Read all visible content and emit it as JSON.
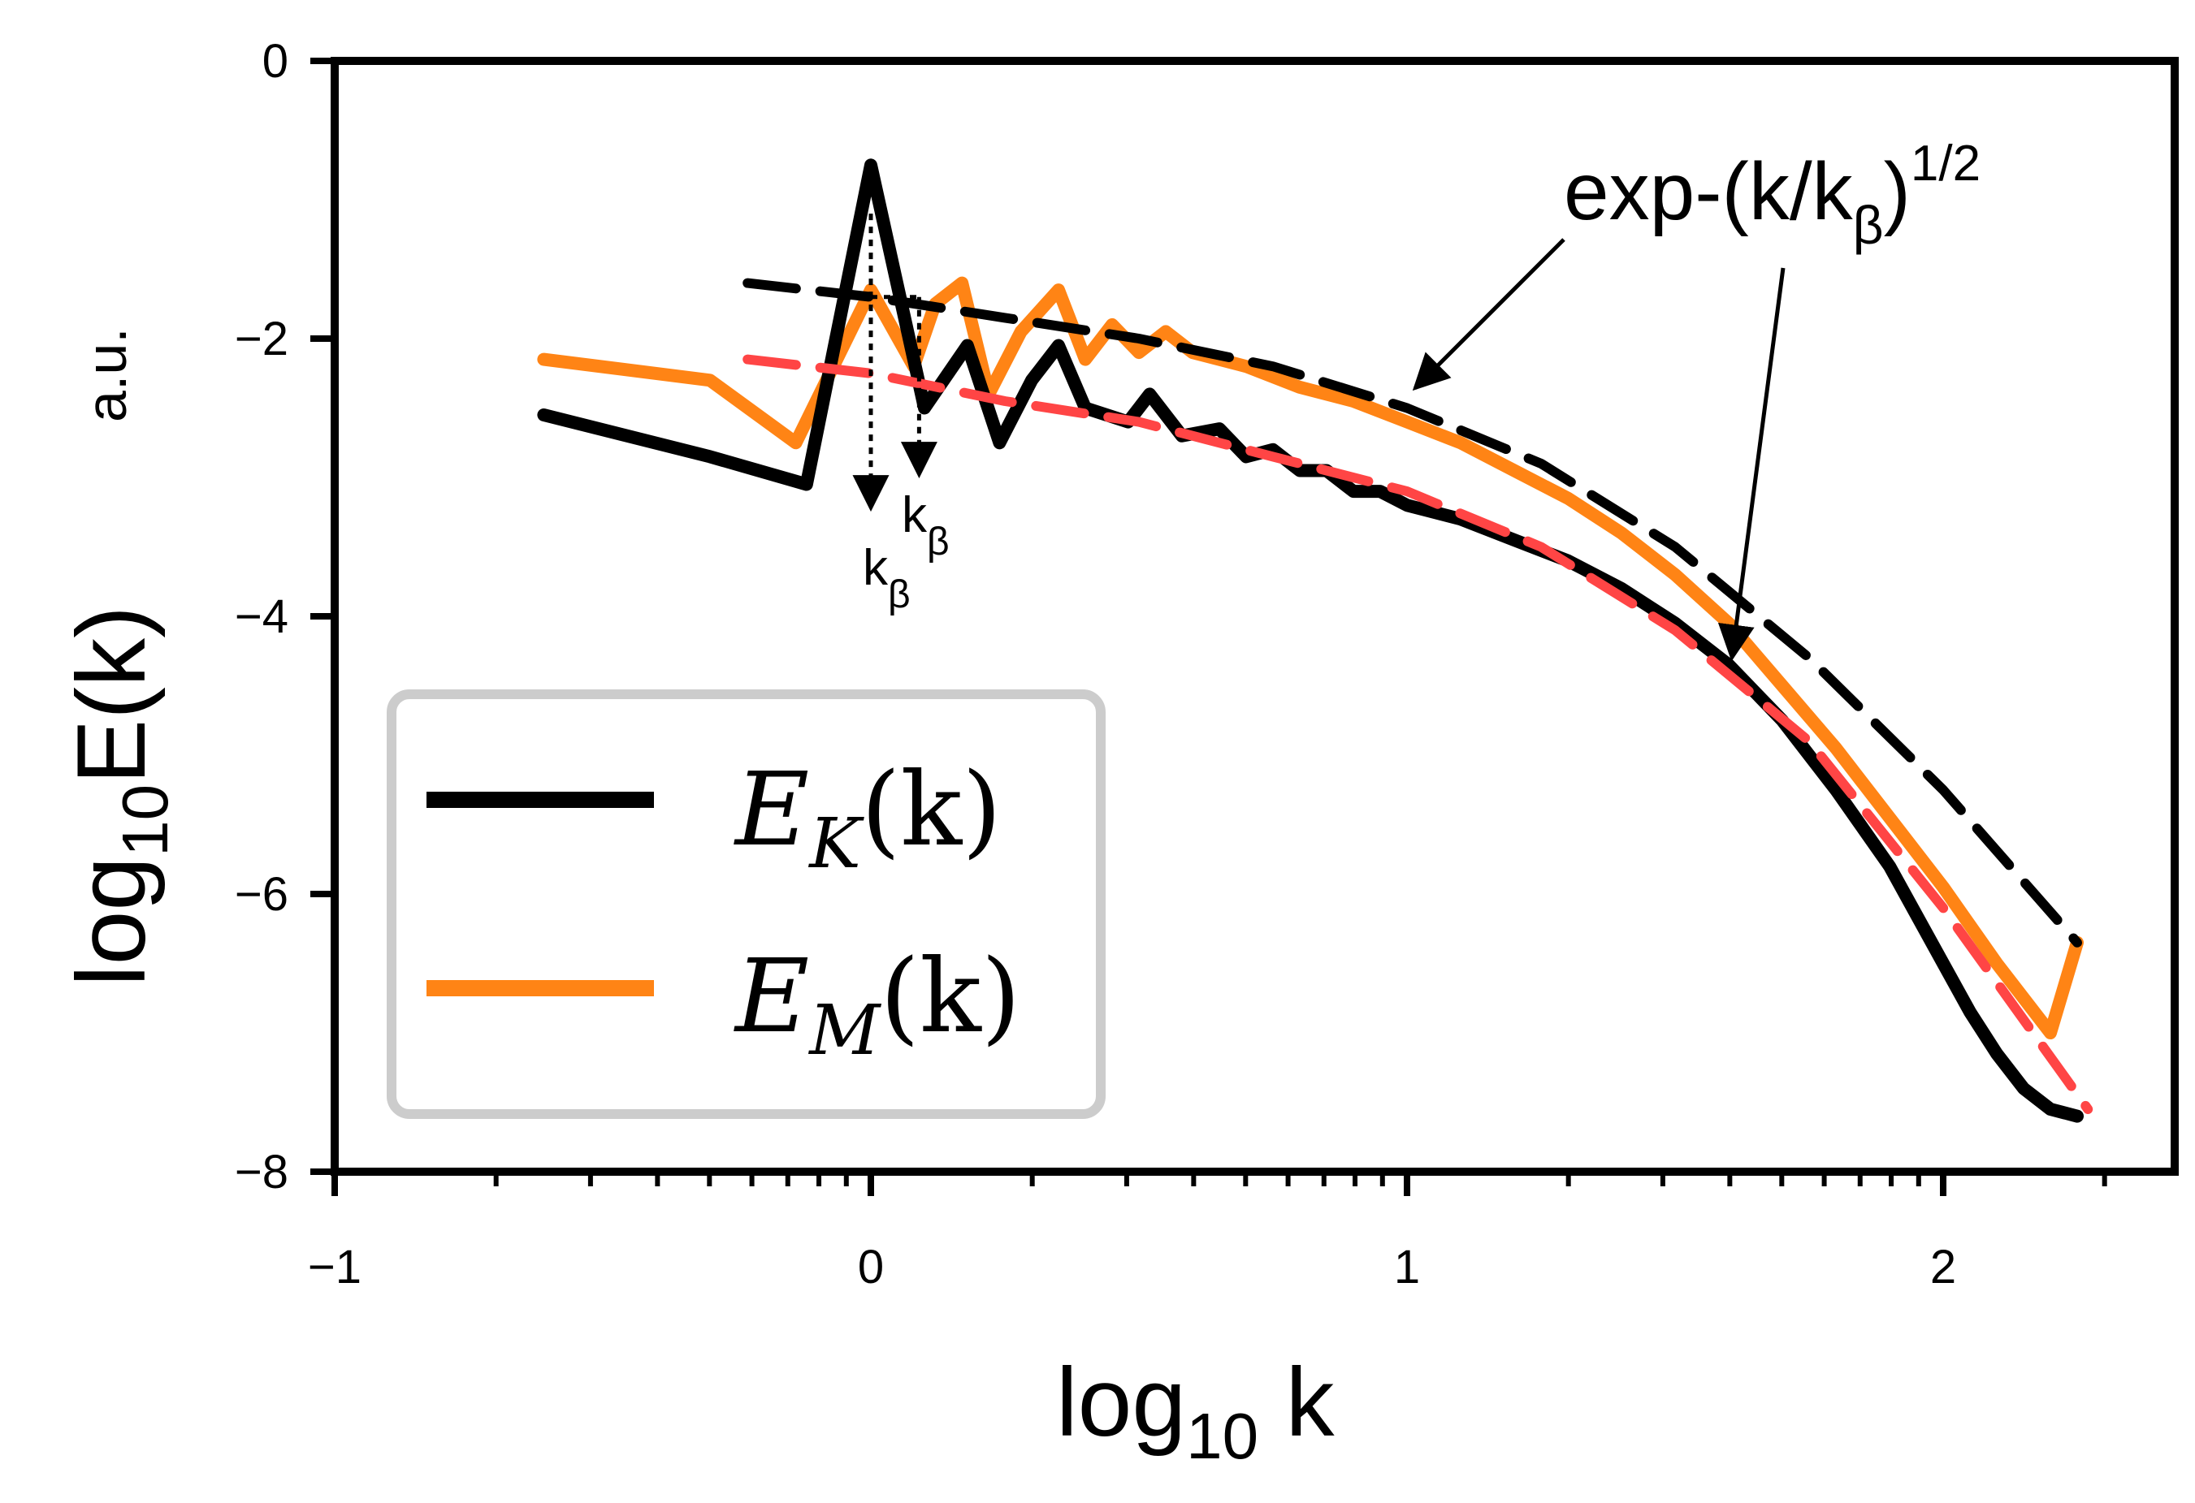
{
  "chart_data": {
    "type": "line",
    "title": "",
    "xlabel": "log",
    "xlabel_sub": "10",
    "xlabel_tail": " k",
    "ylabel": "log",
    "ylabel_sub": "10",
    "ylabel_tail": "E(k)",
    "ylabel_units": "a.u.",
    "xlim": [
      -1,
      2.45
    ],
    "ylim": [
      -8,
      0
    ],
    "xticks": [
      -1,
      0,
      1,
      2
    ],
    "xtick_labels": [
      "−1",
      "0",
      "1",
      "2"
    ],
    "yticks": [
      0,
      -2,
      -4,
      -6,
      -8
    ],
    "ytick_labels": [
      "0",
      "−2",
      "−4",
      "−6",
      "−8"
    ],
    "legend": {
      "placement": "lower-left",
      "entries": [
        {
          "label": "E",
          "sub": "K",
          "tail": "(k)",
          "color": "#000000"
        },
        {
          "label": "E",
          "sub": "M",
          "tail": "(k)",
          "color": "#ff8415"
        }
      ]
    },
    "series": [
      {
        "name": "E_K(k)",
        "color": "#000000",
        "style": "solid",
        "x": [
          -0.61,
          -0.3,
          -0.12,
          0.0,
          0.1,
          0.18,
          0.24,
          0.3,
          0.35,
          0.4,
          0.48,
          0.52,
          0.58,
          0.65,
          0.7,
          0.75,
          0.8,
          0.85,
          0.9,
          0.95,
          1.0,
          1.1,
          1.2,
          1.3,
          1.4,
          1.5,
          1.6,
          1.7,
          1.8,
          1.9,
          2.0,
          2.05,
          2.1,
          2.15,
          2.2,
          2.25
        ],
        "y": [
          -2.55,
          -2.85,
          -3.05,
          -0.75,
          -2.5,
          -2.05,
          -2.75,
          -2.3,
          -2.05,
          -2.5,
          -2.6,
          -2.4,
          -2.7,
          -2.65,
          -2.85,
          -2.8,
          -2.95,
          -2.95,
          -3.1,
          -3.1,
          -3.2,
          -3.3,
          -3.45,
          -3.6,
          -3.8,
          -4.05,
          -4.35,
          -4.75,
          -5.25,
          -5.8,
          -6.5,
          -6.85,
          -7.15,
          -7.4,
          -7.55,
          -7.6
        ]
      },
      {
        "name": "E_M(k)",
        "color": "#ff8415",
        "style": "solid",
        "x": [
          -0.61,
          -0.3,
          -0.14,
          0.0,
          0.08,
          0.12,
          0.17,
          0.22,
          0.28,
          0.35,
          0.4,
          0.45,
          0.5,
          0.55,
          0.6,
          0.7,
          0.8,
          0.9,
          1.0,
          1.1,
          1.2,
          1.3,
          1.4,
          1.5,
          1.6,
          1.7,
          1.8,
          1.9,
          2.0,
          2.1,
          2.2,
          2.25
        ],
        "y": [
          -2.15,
          -2.3,
          -2.75,
          -1.65,
          -2.2,
          -1.75,
          -1.6,
          -2.4,
          -1.95,
          -1.65,
          -2.15,
          -1.9,
          -2.1,
          -1.95,
          -2.1,
          -2.2,
          -2.35,
          -2.45,
          -2.6,
          -2.75,
          -2.95,
          -3.15,
          -3.4,
          -3.7,
          -4.05,
          -4.5,
          -4.95,
          -5.45,
          -5.95,
          -6.5,
          -7.0,
          -6.35
        ]
      },
      {
        "name": "fit_E_M",
        "color": "#000000",
        "style": "dashed",
        "x": [
          -0.23,
          0.0,
          0.25,
          0.5,
          0.75,
          1.0,
          1.25,
          1.5,
          1.75,
          2.0,
          2.25
        ],
        "y": [
          -1.6,
          -1.7,
          -1.85,
          -2.0,
          -2.2,
          -2.5,
          -2.9,
          -3.5,
          -4.3,
          -5.25,
          -6.35
        ]
      },
      {
        "name": "fit_E_K",
        "color": "#ff4545",
        "style": "dashed",
        "x": [
          -0.23,
          0.0,
          0.25,
          0.5,
          0.75,
          1.0,
          1.25,
          1.5,
          1.75,
          2.0,
          2.27
        ],
        "y": [
          -2.15,
          -2.25,
          -2.45,
          -2.6,
          -2.85,
          -3.1,
          -3.5,
          -4.1,
          -4.9,
          -6.1,
          -7.55
        ]
      }
    ],
    "annotations": [
      {
        "text": "exp-(k/k",
        "sub": "β",
        "tail": ")",
        "sup": "1/2"
      },
      {
        "text": "k",
        "sub": "β"
      },
      {
        "text": "k",
        "sub": "β"
      }
    ],
    "markers": [
      {
        "label": "k_beta_1",
        "x": 0.0,
        "y_from": -1.1,
        "y_to": -3.22
      },
      {
        "label": "k_beta_2",
        "x": 0.09,
        "y_from": -1.7,
        "y_to": -2.98
      }
    ]
  }
}
